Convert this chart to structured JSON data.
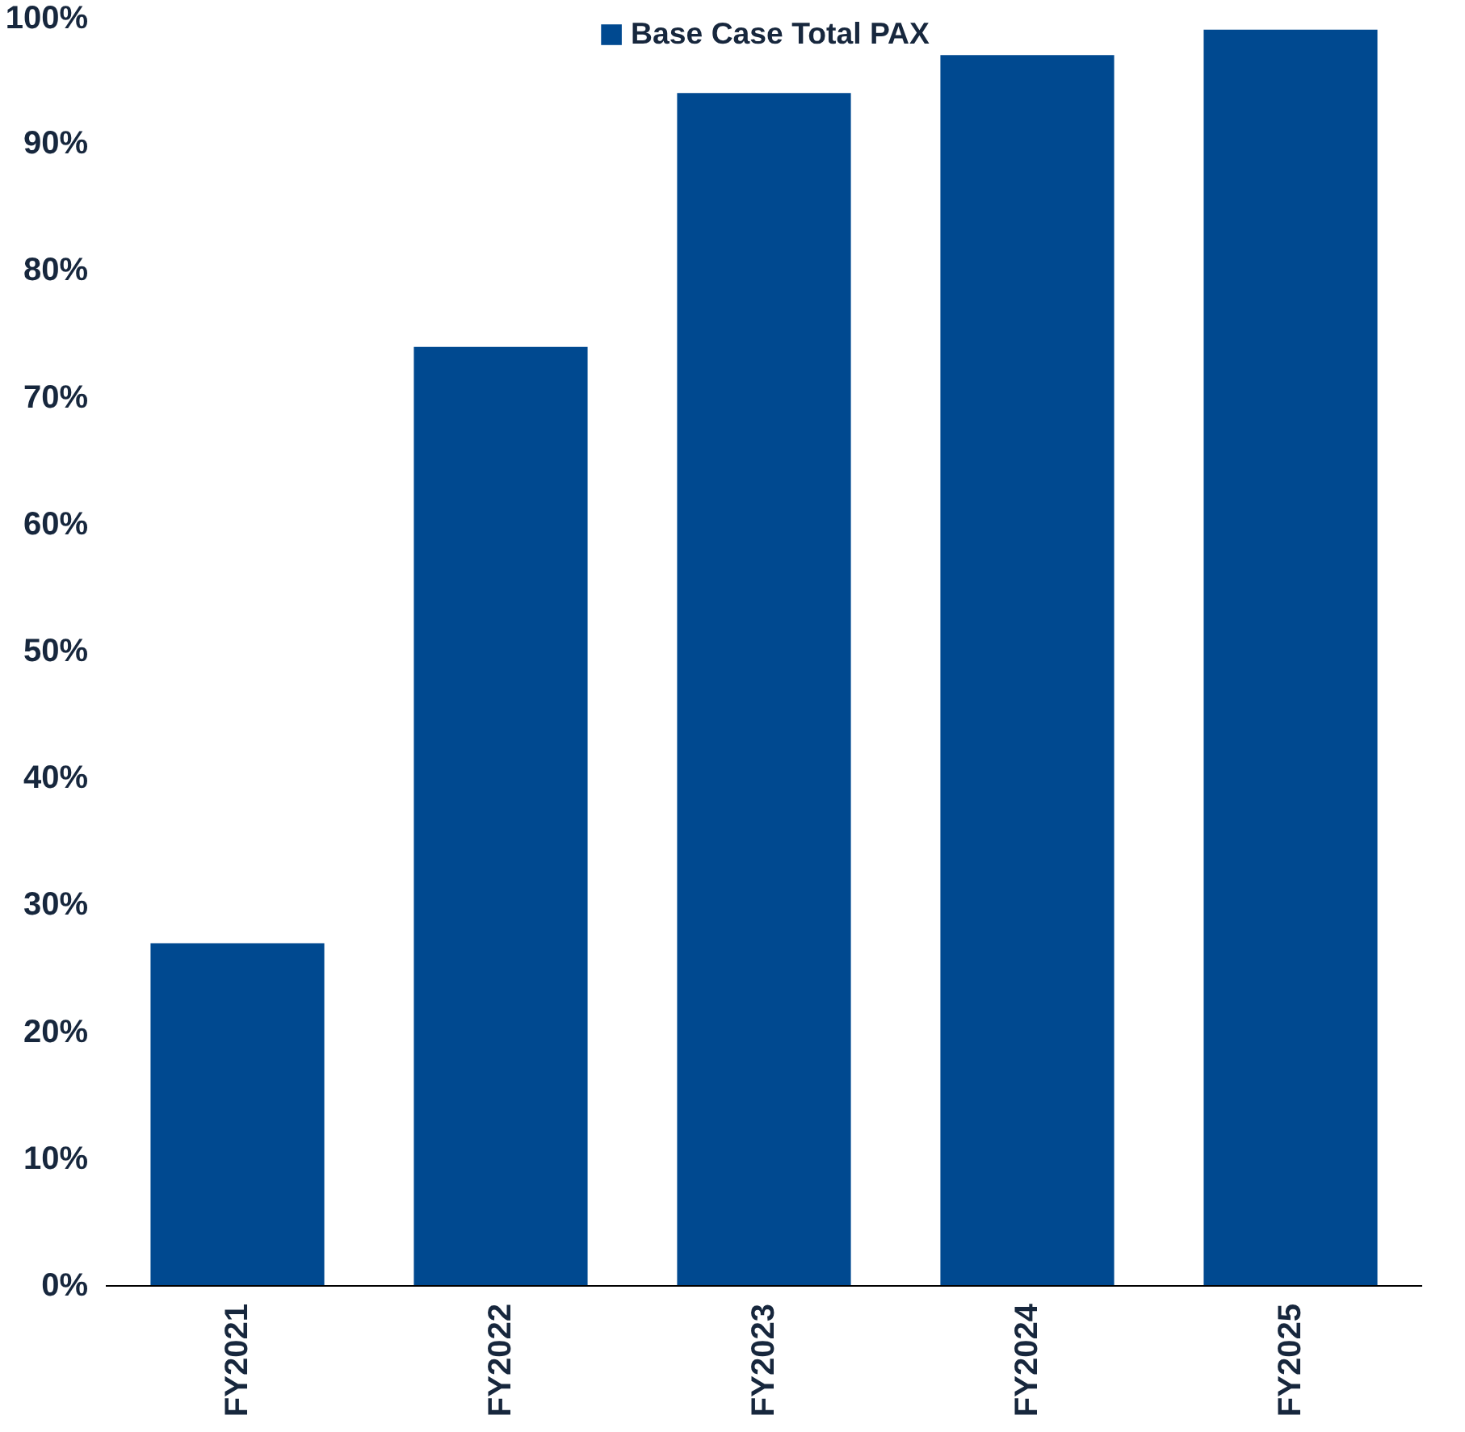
{
  "chart_data": {
    "type": "bar",
    "categories": [
      "FY2021",
      "FY2022",
      "FY2023",
      "FY2024",
      "FY2025"
    ],
    "series": [
      {
        "name": "Base Case Total PAX",
        "color": "#004990",
        "values": [
          27,
          74,
          94,
          97,
          99
        ]
      }
    ],
    "ylim": [
      0,
      100
    ],
    "yticks": [
      {
        "value": 0,
        "label": "0%"
      },
      {
        "value": 10,
        "label": "10%"
      },
      {
        "value": 20,
        "label": "20%"
      },
      {
        "value": 30,
        "label": "30%"
      },
      {
        "value": 40,
        "label": "40%"
      },
      {
        "value": 50,
        "label": "50%"
      },
      {
        "value": 60,
        "label": "60%"
      },
      {
        "value": 70,
        "label": "70%"
      },
      {
        "value": 80,
        "label": "80%"
      },
      {
        "value": 90,
        "label": "90%"
      },
      {
        "value": 100,
        "label": "100%"
      }
    ],
    "grid": false,
    "legend": "top"
  }
}
